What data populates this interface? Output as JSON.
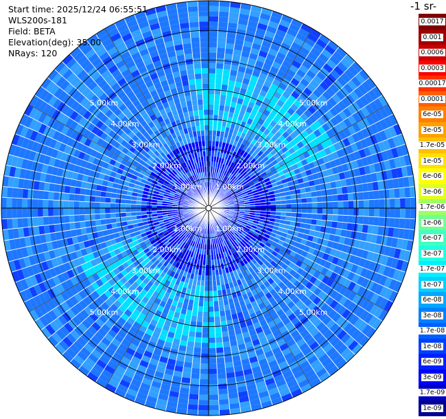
{
  "header": {
    "start_time": "Start time: 2025/12/24 06:55:51",
    "instrument": "WLS200s-181",
    "field": "Field: BETA",
    "elevation": "Elevation(deg): 35.00",
    "nrays": "NRays: 120"
  },
  "chart_data": {
    "type": "heatmap",
    "projection": "polar",
    "n_rays": 120,
    "max_range_km": 7.0,
    "range_ring_labels": [
      "1.00km",
      "2.00km",
      "3.00km",
      "4.00km",
      "5.00km"
    ],
    "range_rings_km": [
      1,
      2,
      3,
      4,
      5
    ],
    "colorbar": {
      "unit_label": "-1 sr-",
      "tick_labels": [
        "0.0017",
        "0.001",
        "0.0006",
        "0.0003",
        "0.00017",
        "0.0001",
        "6e-05",
        "3e-05",
        "1.7e-05",
        "1e-05",
        "6e-06",
        "3e-06",
        "1.7e-06",
        "1e-06",
        "6e-07",
        "3e-07",
        "1.7e-07",
        "1e-07",
        "6e-08",
        "3e-08",
        "1.7e-08",
        "1e-08",
        "6e-09",
        "3e-09",
        "1.7e-09",
        "1e-09"
      ],
      "colors": [
        "#800000",
        "#a00000",
        "#c80000",
        "#ff0000",
        "#ff3000",
        "#ff6000",
        "#ff8000",
        "#ffa000",
        "#ffc000",
        "#ffe000",
        "#ffff00",
        "#e0ff20",
        "#a0ff60",
        "#70ff90",
        "#40ffc0",
        "#20ffe0",
        "#00f0ff",
        "#00d0ff",
        "#00a8ff",
        "#0080ff",
        "#0060ff",
        "#0040ff",
        "#0020ff",
        "#0000ff",
        "#0000c0",
        "#000090"
      ]
    },
    "background_level_range": [
      "1e-08",
      "1.7e-07"
    ],
    "dominant_colors": [
      "#1e78ff",
      "#32a0ff",
      "#00e0ff",
      "#1040ff",
      "#0000ff"
    ]
  }
}
